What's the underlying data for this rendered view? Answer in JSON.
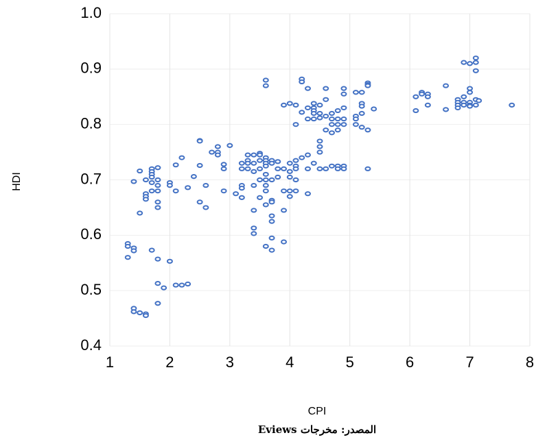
{
  "chart_data": {
    "type": "scatter",
    "xlabel": "CPI",
    "ylabel": "HDI",
    "source": {
      "prefix": "المصدر: مخرجات",
      "tool": "Eviews"
    },
    "color": "#4472c4",
    "grid": true,
    "xlim": [
      1,
      8
    ],
    "xticks": [
      1,
      2,
      3,
      4,
      5,
      6,
      7,
      8
    ],
    "ylim": [
      0.4,
      1
    ],
    "yticks": [
      0.4,
      0.5,
      0.6,
      0.7,
      0.8,
      0.9,
      {
        "value": 1,
        "label": "1.0"
      }
    ],
    "x": [
      1.3,
      1.3,
      1.3,
      1.4,
      1.4,
      1.4,
      1.4,
      1.4,
      1.5,
      1.5,
      1.5,
      1.6,
      1.6,
      1.6,
      1.6,
      1.6,
      1.6,
      1.7,
      1.7,
      1.7,
      1.7,
      1.7,
      1.7,
      1.7,
      1.8,
      1.8,
      1.8,
      1.8,
      1.8,
      1.8,
      1.8,
      1.8,
      1.8,
      1.9,
      2.0,
      2.0,
      2.0,
      2.1,
      2.1,
      2.1,
      2.2,
      2.2,
      2.3,
      2.3,
      2.4,
      2.5,
      2.5,
      2.5,
      2.5,
      2.6,
      2.6,
      2.7,
      2.8,
      2.8,
      2.8,
      2.9,
      2.9,
      2.9,
      3.0,
      3.1,
      3.2,
      3.2,
      3.2,
      3.2,
      3.2,
      3.3,
      3.3,
      3.3,
      3.3,
      3.4,
      3.4,
      3.4,
      3.4,
      3.4,
      3.4,
      3.4,
      3.5,
      3.5,
      3.5,
      3.5,
      3.5,
      3.5,
      3.6,
      3.6,
      3.6,
      3.6,
      3.6,
      3.6,
      3.6,
      3.6,
      3.6,
      3.6,
      3.6,
      3.6,
      3.7,
      3.7,
      3.7,
      3.7,
      3.7,
      3.7,
      3.7,
      3.7,
      3.7,
      3.8,
      3.8,
      3.8,
      3.9,
      3.9,
      3.9,
      3.9,
      3.9,
      4.0,
      4.0,
      4.0,
      4.0,
      4.0,
      4.0,
      4.1,
      4.1,
      4.1,
      4.1,
      4.1,
      4.1,
      4.1,
      4.2,
      4.2,
      4.2,
      4.2,
      4.3,
      4.3,
      4.3,
      4.3,
      4.3,
      4.3,
      4.4,
      4.4,
      4.4,
      4.4,
      4.4,
      4.4,
      4.5,
      4.5,
      4.5,
      4.5,
      4.5,
      4.5,
      4.5,
      4.6,
      4.6,
      4.6,
      4.6,
      4.6,
      4.7,
      4.7,
      4.7,
      4.7,
      4.7,
      4.8,
      4.8,
      4.8,
      4.8,
      4.8,
      4.8,
      4.9,
      4.9,
      4.9,
      4.9,
      4.9,
      4.9,
      4.9,
      5.1,
      5.1,
      5.1,
      5.1,
      5.2,
      5.2,
      5.2,
      5.2,
      5.2,
      5.3,
      5.3,
      5.3,
      5.3,
      5.3,
      5.4,
      6.1,
      6.1,
      6.2,
      6.2,
      6.3,
      6.3,
      6.3,
      6.6,
      6.6,
      6.8,
      6.8,
      6.8,
      6.8,
      6.9,
      6.9,
      6.9,
      6.9,
      7.0,
      7.0,
      7.0,
      7.0,
      7.0,
      7.0,
      7.1,
      7.1,
      7.1,
      7.1,
      7.1,
      7.15,
      7.7
    ],
    "values": [
      0.585,
      0.58,
      0.56,
      0.577,
      0.572,
      0.468,
      0.462,
      0.697,
      0.46,
      0.716,
      0.64,
      0.458,
      0.455,
      0.7,
      0.675,
      0.67,
      0.665,
      0.72,
      0.715,
      0.71,
      0.705,
      0.68,
      0.573,
      0.695,
      0.722,
      0.7,
      0.69,
      0.68,
      0.66,
      0.65,
      0.557,
      0.513,
      0.477,
      0.505,
      0.695,
      0.69,
      0.553,
      0.727,
      0.68,
      0.51,
      0.74,
      0.51,
      0.686,
      0.512,
      0.706,
      0.771,
      0.77,
      0.726,
      0.66,
      0.69,
      0.65,
      0.75,
      0.76,
      0.75,
      0.745,
      0.728,
      0.72,
      0.68,
      0.762,
      0.675,
      0.73,
      0.72,
      0.69,
      0.685,
      0.668,
      0.745,
      0.735,
      0.73,
      0.72,
      0.745,
      0.73,
      0.715,
      0.69,
      0.645,
      0.613,
      0.603,
      0.748,
      0.745,
      0.735,
      0.72,
      0.7,
      0.668,
      0.88,
      0.87,
      0.74,
      0.735,
      0.73,
      0.725,
      0.71,
      0.7,
      0.69,
      0.68,
      0.655,
      0.58,
      0.735,
      0.73,
      0.7,
      0.663,
      0.66,
      0.635,
      0.625,
      0.595,
      0.573,
      0.733,
      0.72,
      0.705,
      0.835,
      0.72,
      0.68,
      0.645,
      0.588,
      0.838,
      0.73,
      0.715,
      0.705,
      0.68,
      0.67,
      0.835,
      0.8,
      0.735,
      0.725,
      0.72,
      0.7,
      0.68,
      0.882,
      0.877,
      0.822,
      0.74,
      0.865,
      0.83,
      0.81,
      0.745,
      0.72,
      0.675,
      0.838,
      0.83,
      0.825,
      0.82,
      0.81,
      0.73,
      0.835,
      0.82,
      0.812,
      0.77,
      0.76,
      0.75,
      0.72,
      0.865,
      0.845,
      0.815,
      0.79,
      0.72,
      0.82,
      0.81,
      0.8,
      0.785,
      0.725,
      0.825,
      0.81,
      0.8,
      0.79,
      0.725,
      0.72,
      0.865,
      0.855,
      0.83,
      0.81,
      0.8,
      0.725,
      0.72,
      0.858,
      0.815,
      0.81,
      0.8,
      0.858,
      0.838,
      0.833,
      0.82,
      0.795,
      0.875,
      0.872,
      0.87,
      0.79,
      0.72,
      0.828,
      0.85,
      0.825,
      0.858,
      0.855,
      0.855,
      0.85,
      0.835,
      0.87,
      0.827,
      0.845,
      0.84,
      0.835,
      0.83,
      0.912,
      0.85,
      0.84,
      0.835,
      0.91,
      0.865,
      0.858,
      0.84,
      0.835,
      0.833,
      0.92,
      0.912,
      0.897,
      0.845,
      0.835,
      0.843,
      0.835
    ]
  }
}
